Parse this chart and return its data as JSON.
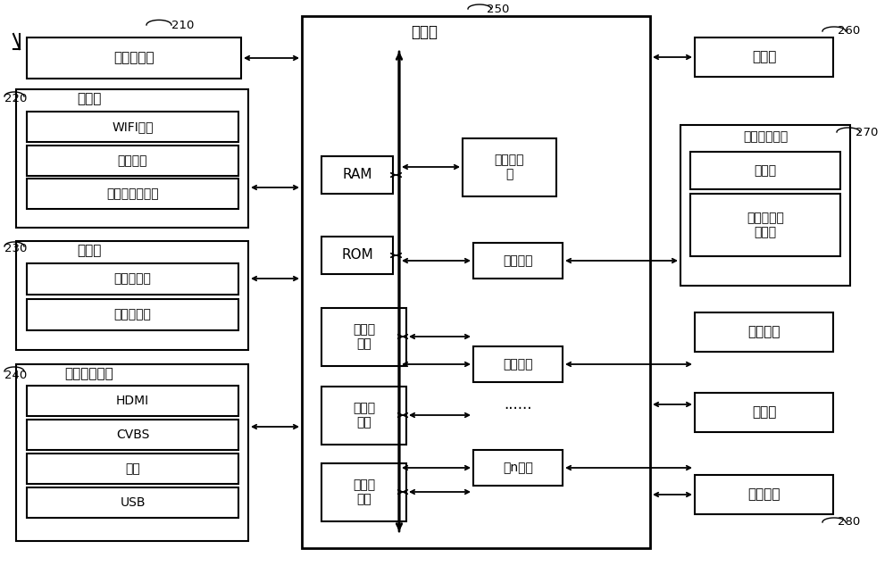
{
  "bg_color": "#ffffff",
  "line_color": "#000000",
  "box_fill": "#ffffff",
  "labels": {
    "tuner": "调谐解调器",
    "comm": "通信器",
    "wifi": "WIFI模块",
    "bt": "蓝牙模块",
    "ethernet": "有线以太网模块",
    "detector": "检测器",
    "audio_col": "声音采集器",
    "image_col": "图像采集器",
    "ext_if": "外部装置接口",
    "hdmi": "HDMI",
    "cvbs": "CVBS",
    "fen": "分量",
    "usb": "USB",
    "controller": "控制器",
    "cpu": "中央处理\n器",
    "ram": "RAM",
    "rom": "ROM",
    "video_proc": "视频处\n理器",
    "graphic_proc": "图形处\n理器",
    "audio_proc": "音频处\n理器",
    "iface1": "第一接口",
    "iface2": "第二接口",
    "dots": "......",
    "ifacen": "第n接口",
    "display": "显示器",
    "audio_out_if": "音频输出接口",
    "speaker": "扬声器",
    "ext_speaker": "外接音响输\n出端子",
    "power": "供电电源",
    "storage": "存储器",
    "user_if": "用户接口",
    "num_210": "210",
    "num_220": "220",
    "num_230": "230",
    "num_240": "240",
    "num_250": "250",
    "num_260": "260",
    "num_270": "270",
    "num_280": "280"
  }
}
